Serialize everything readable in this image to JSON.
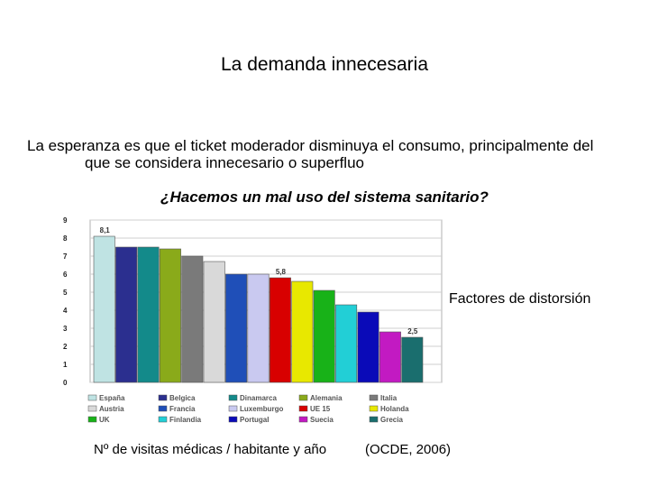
{
  "slide": {
    "title": "La demanda innecesaria",
    "subtitle_line1": "La esperanza es que el ticket moderador disminuya el consumo, principalmente del",
    "subtitle_line2": "que se considera innecesario o superfluo",
    "side_note": "Factores de distorsión",
    "footer_left": "Nº de visitas médicas / habitante y año",
    "footer_right": "(OCDE, 2006)"
  },
  "chart_data": {
    "type": "bar",
    "title": "¿Hacemos un mal uso del sistema sanitario?",
    "xlabel": "",
    "ylabel": "",
    "ylim": [
      0,
      9
    ],
    "yticks": [
      0,
      1,
      2,
      3,
      4,
      5,
      6,
      7,
      8,
      9
    ],
    "grid": true,
    "legend_position": "bottom",
    "categories": [
      "España",
      "Belgica",
      "Dinamarca",
      "Alemania",
      "Italia",
      "Austria",
      "Francia",
      "Luxemburgo",
      "UE 15",
      "Holanda",
      "UK",
      "Finlandia",
      "Portugal",
      "Suecia",
      "Grecia"
    ],
    "values": [
      8.1,
      7.5,
      7.5,
      7.4,
      7.0,
      6.7,
      6.0,
      6.0,
      5.8,
      5.6,
      5.1,
      4.3,
      3.9,
      2.8,
      2.5
    ],
    "data_labels": {
      "0": "8,1",
      "8": "5,8",
      "14": "2,5"
    },
    "colors": [
      "#bfe3e3",
      "#2b2f8f",
      "#138a8a",
      "#8aaa1a",
      "#7a7a7a",
      "#d9d9d9",
      "#1f4fb8",
      "#c9c9f0",
      "#d80000",
      "#e8e800",
      "#18b218",
      "#22cfd6",
      "#0a0ab8",
      "#c21ac2",
      "#1a6e6e"
    ]
  }
}
